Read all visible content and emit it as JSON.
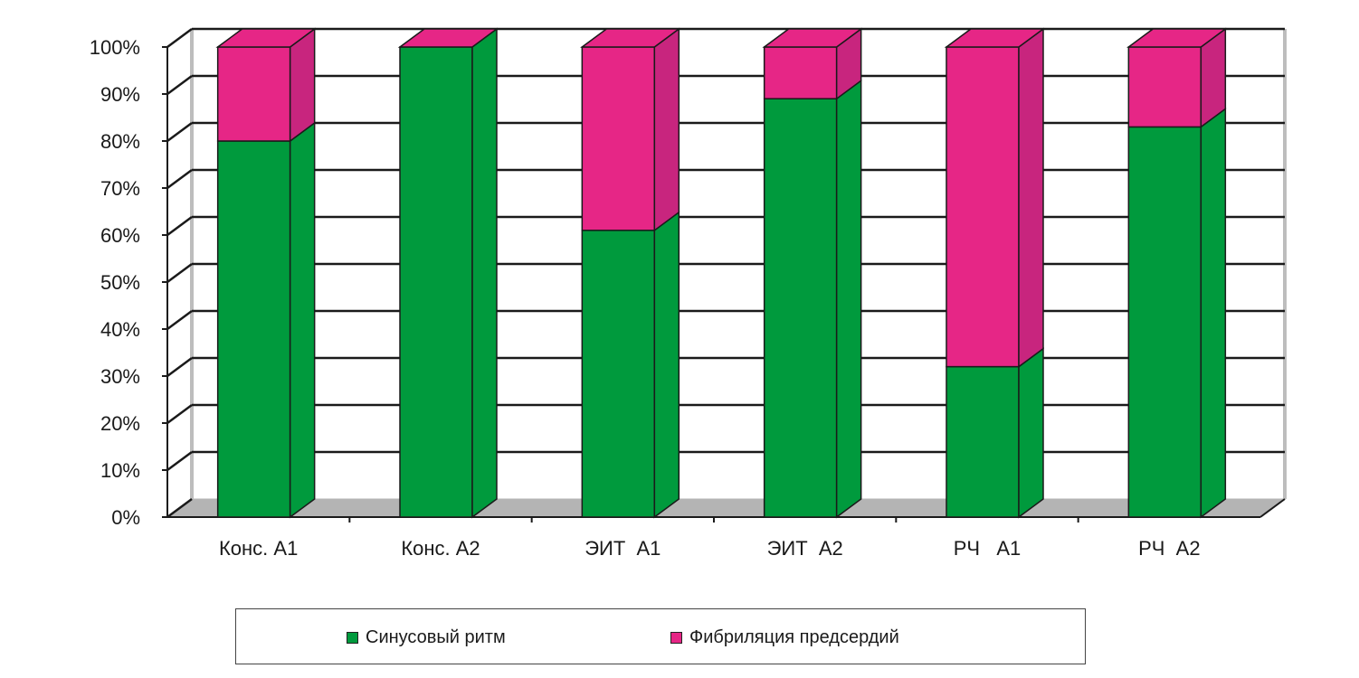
{
  "chart_data": {
    "type": "bar",
    "stacked": true,
    "percent_stacked": true,
    "three_d": true,
    "categories": [
      "Конс. А1",
      "Конс. А2",
      "ЭИТ  А1",
      "ЭИТ  А2",
      "РЧ   А1",
      "РЧ  А2"
    ],
    "series": [
      {
        "name": "Синусовый ритм",
        "color": "#009a3d",
        "values": [
          80,
          100,
          61,
          89,
          32,
          83
        ]
      },
      {
        "name": "Фибриляция предсердий",
        "color": "#e62686",
        "values": [
          20,
          0,
          39,
          11,
          68,
          17
        ]
      }
    ],
    "y_ticks": [
      "0%",
      "10%",
      "20%",
      "30%",
      "40%",
      "50%",
      "60%",
      "70%",
      "80%",
      "90%",
      "100%"
    ],
    "ylim": [
      0,
      100
    ],
    "grid": true,
    "legend_position": "bottom",
    "title": "",
    "xlabel": "",
    "ylabel": ""
  }
}
